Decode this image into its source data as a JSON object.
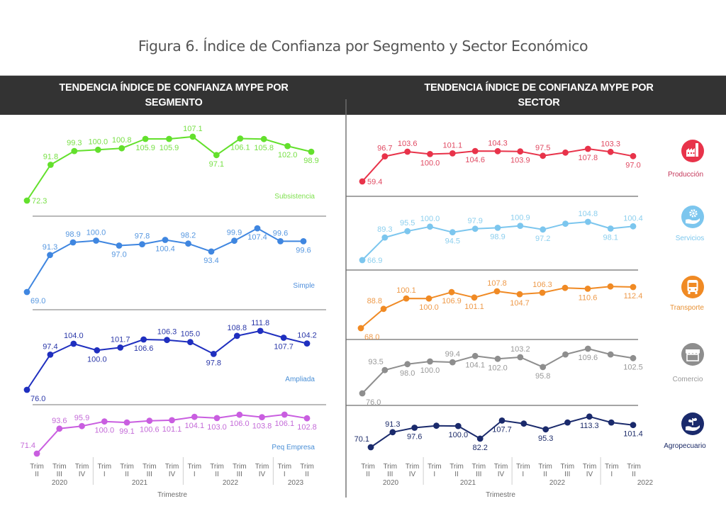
{
  "figure": {
    "title": "Figura 6. Índice de Confianza por Segmento y Sector Económico"
  },
  "headers": {
    "left": [
      "TENDENCIA ÍNDICE DE CONFIANZA MYPE POR",
      "SEGMENTO"
    ],
    "right": [
      "TENDENCIA ÍNDICE DE CONFIANZA MYPE POR",
      "SECTOR"
    ]
  },
  "chart_data": [
    {
      "type": "line",
      "title": "TENDENCIA ÍNDICE DE CONFIANZA MYPE POR SEGMENTO",
      "xlabel": "Trimestre",
      "ylabel": "",
      "grid": false,
      "legend": "inline-right",
      "categories": [
        "Trim II 2020",
        "Trim III 2020",
        "Trim IV 2020",
        "Trim I 2021",
        "Trim II 2021",
        "Trim III 2021",
        "Trim IV 2021",
        "Trim I 2022",
        "Trim II 2022",
        "Trim III 2022",
        "Trim IV 2022",
        "Trim I 2023",
        "Trim II 2023"
      ],
      "x_ticks": [
        {
          "top": "Trim",
          "sub": "II"
        },
        {
          "top": "Trim",
          "sub": "III"
        },
        {
          "top": "Trim",
          "sub": "IV"
        },
        {
          "top": "Trim",
          "sub": "I"
        },
        {
          "top": "Trim",
          "sub": "II"
        },
        {
          "top": "Trim",
          "sub": "III"
        },
        {
          "top": "Trim",
          "sub": "IV"
        },
        {
          "top": "Trim",
          "sub": "I"
        },
        {
          "top": "Trim",
          "sub": "II"
        },
        {
          "top": "Trim",
          "sub": "III"
        },
        {
          "top": "Trim",
          "sub": "IV"
        },
        {
          "top": "Trim",
          "sub": "I"
        },
        {
          "top": "Trim",
          "sub": "II"
        }
      ],
      "x_groups": [
        {
          "label": "2020",
          "count": 3
        },
        {
          "label": "2021",
          "count": 4
        },
        {
          "label": "2022",
          "count": 4
        },
        {
          "label": "2023",
          "count": 2
        }
      ],
      "series": [
        {
          "name": "Subsistencia",
          "color": "#63e02c",
          "label_color": "#78e046",
          "name_color": "#7fe04f",
          "values": [
            72.3,
            91.8,
            99.3,
            100.0,
            100.8,
            105.9,
            105.9,
            107.1,
            97.1,
            106.1,
            105.8,
            102.0,
            98.9
          ],
          "labels": [
            "72.3",
            "91.8",
            "99.3",
            "100.0",
            "100.8",
            "105.9",
            "105.9",
            "107.1",
            "97.1",
            "106.1",
            "105.8",
            "102.0",
            "98.9"
          ],
          "label_placement": [
            "right",
            "above",
            "above",
            "above",
            "above",
            "below",
            "below",
            "above",
            "below",
            "below",
            "below",
            "below",
            "below"
          ]
        },
        {
          "name": "Simple",
          "color": "#3f86e0",
          "label_color": "#5697e0",
          "name_color": "#4f8fdc",
          "values": [
            69.0,
            91.3,
            98.9,
            100.0,
            97.0,
            97.8,
            100.4,
            98.2,
            93.4,
            99.9,
            107.4,
            99.6,
            99.6
          ],
          "labels": [
            "69.0",
            "91.3",
            "98.9",
            "100.0",
            "97.0",
            "97.8",
            "100.4",
            "98.2",
            "93.4",
            "99.9",
            "107.4",
            "99.6",
            "99.6"
          ],
          "label_placement": [
            "below-right",
            "above",
            "above",
            "above",
            "below",
            "above",
            "below",
            "above",
            "below",
            "above",
            "below",
            "above",
            "below"
          ]
        },
        {
          "name": "Ampliada",
          "color": "#1f2fbf",
          "label_color": "#2a37a8",
          "name_color": "#4a8fd6",
          "values": [
            76.0,
            97.4,
            104.0,
            100.0,
            101.7,
            106.6,
            106.3,
            105.0,
            97.8,
            108.8,
            111.8,
            107.7,
            104.2
          ],
          "labels": [
            "76.0",
            "97.4",
            "104.0",
            "100.0",
            "101.7",
            "106.6",
            "106.3",
            "105.0",
            "97.8",
            "108.8",
            "111.8",
            "107.7",
            "104.2"
          ],
          "label_placement": [
            "below-right",
            "above",
            "above",
            "below",
            "above",
            "below",
            "above",
            "above",
            "below",
            "above",
            "above",
            "below",
            "above"
          ]
        },
        {
          "name": "Peq Empresa",
          "color": "#c95ee0",
          "label_color": "#c46bd8",
          "name_color": "#4a8fd6",
          "values": [
            71.4,
            93.6,
            95.9,
            100.0,
            99.1,
            100.6,
            101.1,
            104.1,
            103.0,
            106.0,
            103.8,
            106.1,
            102.8
          ],
          "labels": [
            "71.4",
            "93.6",
            "95.9",
            "100.0",
            "99.1",
            "100.6",
            "101.1",
            "104.1",
            "103.0",
            "106.0",
            "103.8",
            "106.1",
            "102.8"
          ],
          "label_placement": [
            "above-left",
            "above",
            "above",
            "below",
            "below",
            "below",
            "below",
            "below",
            "below",
            "below",
            "below",
            "below",
            "below"
          ]
        }
      ]
    },
    {
      "type": "line",
      "title": "TENDENCIA ÍNDICE DE CONFIANZA MYPE POR SECTOR",
      "xlabel": "Trimestre",
      "ylabel": "",
      "grid": false,
      "legend": "inline-right-with-icons",
      "categories": [
        "Trim II 2020",
        "Trim III 2020",
        "Trim IV 2020",
        "Trim I 2021",
        "Trim II 2021",
        "Trim III 2021",
        "Trim IV 2021",
        "Trim I 2022",
        "Trim II 2022",
        "Trim III 2022",
        "Trim IV 2022",
        "Trim I 2022",
        "Trim II 2022"
      ],
      "x_ticks": [
        {
          "top": "Trim",
          "sub": "II"
        },
        {
          "top": "Trim",
          "sub": "III"
        },
        {
          "top": "Trim",
          "sub": "IV"
        },
        {
          "top": "Trim",
          "sub": "I"
        },
        {
          "top": "Trim",
          "sub": "II"
        },
        {
          "top": "Trim",
          "sub": "III"
        },
        {
          "top": "Trim",
          "sub": "IV"
        },
        {
          "top": "Trim",
          "sub": "I"
        },
        {
          "top": "Trim",
          "sub": "II"
        },
        {
          "top": "Trim",
          "sub": "III"
        },
        {
          "top": "Trim",
          "sub": "IV"
        },
        {
          "top": "Trim",
          "sub": "I"
        },
        {
          "top": "Trim",
          "sub": "II"
        }
      ],
      "x_groups": [
        {
          "label": "2020",
          "count": 3
        },
        {
          "label": "2021",
          "count": 4
        },
        {
          "label": "2022",
          "count": 4
        },
        {
          "label": "2022",
          "count": 2
        }
      ],
      "series": [
        {
          "name": "Producción",
          "icon": "factory-icon",
          "color": "#e8334a",
          "label_color": "#e04a62",
          "name_color": "#c4375a",
          "values": [
            59.4,
            96.7,
            103.6,
            100.0,
            101.1,
            104.6,
            104.3,
            103.9,
            97.5,
            102.2,
            107.8,
            103.3,
            97.0
          ],
          "labels": [
            "59.4",
            "96.7",
            "103.6",
            "100.0",
            "101.1",
            "104.6",
            "104.3",
            "103.9",
            "97.5",
            null,
            "107.8",
            "103.3",
            "97.0"
          ],
          "label_placement": [
            "right",
            "above",
            "above",
            "below",
            "above",
            "below",
            "above",
            "below",
            "above",
            null,
            "below",
            "above",
            "below"
          ]
        },
        {
          "name": "Servicios",
          "icon": "service-gear-hand-icon",
          "color": "#7cc6ee",
          "label_color": "#8ccfee",
          "name_color": "#7ec8ee",
          "values": [
            66.9,
            89.3,
            95.5,
            100.0,
            94.5,
            97.9,
            98.9,
            100.9,
            97.2,
            102.9,
            104.8,
            98.1,
            100.4
          ],
          "labels": [
            "66.9",
            "89.3",
            "95.5",
            "100.0",
            "94.5",
            "97.9",
            "98.9",
            "100.9",
            "97.2",
            null,
            "104.8",
            "98.1",
            "100.4"
          ],
          "label_placement": [
            "right",
            "above",
            "above",
            "above",
            "below",
            "above",
            "below",
            "above",
            "below",
            null,
            "above",
            "below",
            "above"
          ]
        },
        {
          "name": "Transporte",
          "icon": "bus-icon",
          "color": "#f08a24",
          "label_color": "#ee9a4a",
          "name_color": "#e89134",
          "values": [
            68.0,
            88.8,
            100.1,
            100.0,
            106.9,
            101.1,
            107.8,
            104.7,
            106.3,
            111.5,
            110.6,
            113.0,
            112.4
          ],
          "labels": [
            "68.0",
            "88.8",
            "100.1",
            "100.0",
            "106.9",
            "101.1",
            "107.8",
            "104.7",
            "106.3",
            null,
            "110.6",
            null,
            "112.4"
          ],
          "label_placement": [
            "below-right",
            "above-left",
            "above",
            "below",
            "below",
            "below",
            "above",
            "below",
            "above",
            null,
            "below",
            null,
            "below"
          ]
        },
        {
          "name": "Comercio",
          "icon": "store-icon",
          "color": "#8e8e8e",
          "label_color": "#999999",
          "name_color": "#999999",
          "values": [
            76.0,
            93.5,
            98.0,
            100.0,
            99.4,
            104.1,
            102.0,
            103.2,
            95.8,
            105.3,
            109.6,
            105.3,
            102.5
          ],
          "labels": [
            "76.0",
            "93.5",
            "98.0",
            "100.0",
            "99.4",
            "104.1",
            "102.0",
            "103.2",
            "95.8",
            null,
            "109.6",
            null,
            "102.5"
          ],
          "label_placement": [
            "below-right",
            "above-left",
            "below",
            "below",
            "above",
            "below",
            "below",
            "above",
            "below",
            null,
            "below",
            null,
            "below"
          ]
        },
        {
          "name": "Agropecuario",
          "icon": "plant-hand-icon",
          "color": "#1a2a6c",
          "label_color": "#1e2d6a",
          "name_color": "#1b2a66",
          "values": [
            70.1,
            91.3,
            97.6,
            100.4,
            100.0,
            82.2,
            107.7,
            103.4,
            95.3,
            105.0,
            113.3,
            105.0,
            101.4
          ],
          "labels": [
            "70.1",
            "91.3",
            "97.6",
            null,
            "100.0",
            "82.2",
            "107.7",
            null,
            "95.3",
            null,
            "113.3",
            null,
            "101.4"
          ],
          "label_placement": [
            "above-left",
            "above",
            "below",
            null,
            "below",
            "below",
            "below",
            null,
            "below",
            null,
            "below",
            null,
            "below"
          ]
        }
      ]
    }
  ]
}
